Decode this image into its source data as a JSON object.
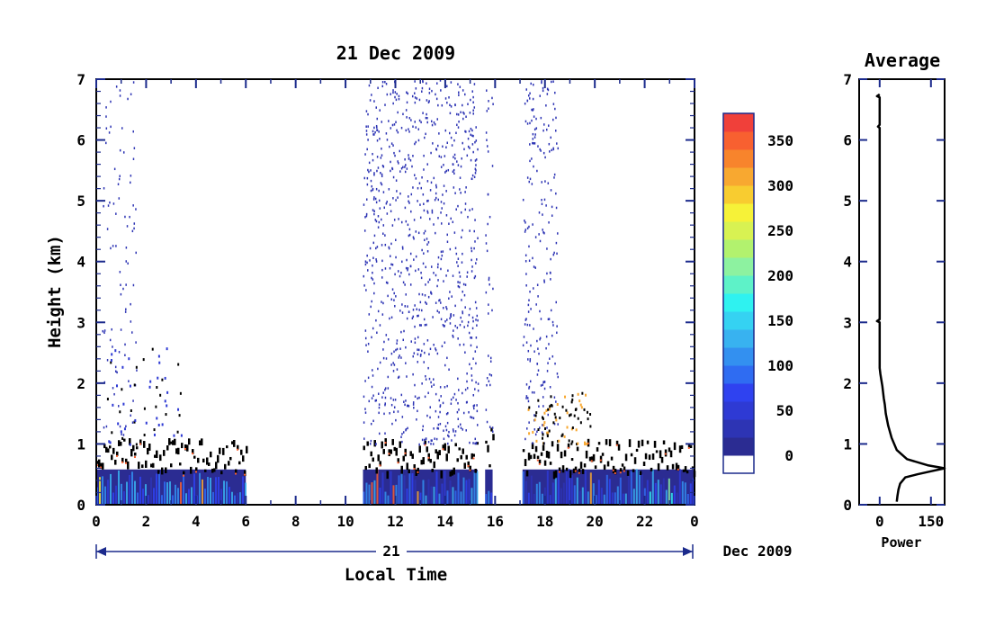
{
  "chart_data": [
    {
      "type": "heatmap",
      "title": "21 Dec 2009",
      "xlabel": "Local Time",
      "ylabel": "Height (km)",
      "x_tick_labels": [
        "0",
        "2",
        "4",
        "6",
        "8",
        "10",
        "12",
        "14",
        "16",
        "18",
        "20",
        "22",
        "0"
      ],
      "y_tick_labels": [
        "0",
        "1",
        "2",
        "3",
        "4",
        "5",
        "6",
        "7"
      ],
      "xlim": [
        0,
        24
      ],
      "ylim": [
        0,
        7
      ],
      "date_bar_label": "21",
      "date_suffix": "Dec 2009",
      "colorbar": {
        "tick_labels": [
          "0",
          "50",
          "100",
          "150",
          "200",
          "250",
          "300",
          "350"
        ],
        "range": [
          0,
          380
        ],
        "colors": [
          "#2b2c92",
          "#2d34b4",
          "#2e3ad4",
          "#2f42f0",
          "#2f6cf2",
          "#3390f0",
          "#38b2f0",
          "#35d2f2",
          "#2ff2f0",
          "#5ef2c8",
          "#8df2a0",
          "#b2f26e",
          "#d8f252",
          "#f6f238",
          "#f8cc30",
          "#f8a830",
          "#f8842c",
          "#f86030",
          "#f0403a"
        ]
      },
      "data_segments": [
        {
          "start": 0.0,
          "end": 6.0,
          "top": 1.0
        },
        {
          "start": 10.7,
          "end": 15.3,
          "top": 1.0
        },
        {
          "start": 15.6,
          "end": 15.9,
          "top": 1.3
        },
        {
          "start": 17.1,
          "end": 24.0,
          "top": 1.0
        }
      ]
    },
    {
      "type": "line",
      "title": "Average",
      "xlabel": "Power",
      "ylabel": "",
      "x_tick_labels": [
        "0",
        "150"
      ],
      "y_tick_labels": [
        "0",
        "1",
        "2",
        "3",
        "4",
        "5",
        "6",
        "7"
      ],
      "xlim": [
        -60,
        190
      ],
      "ylim": [
        0,
        7
      ],
      "series": [
        {
          "x": [
            50,
            52,
            55,
            60,
            75,
            110,
            150,
            190,
            140,
            80,
            50,
            35,
            25,
            18,
            15,
            12,
            10,
            8,
            5,
            2,
            0,
            0,
            0,
            -8,
            0,
            0,
            0,
            -5,
            0,
            0,
            -8,
            0
          ],
          "y": [
            0.05,
            0.15,
            0.25,
            0.35,
            0.45,
            0.5,
            0.55,
            0.6,
            0.65,
            0.75,
            0.9,
            1.1,
            1.3,
            1.5,
            1.65,
            1.75,
            1.85,
            1.95,
            2.05,
            2.15,
            2.25,
            2.4,
            3.0,
            3.02,
            3.05,
            5.0,
            6.2,
            6.22,
            6.25,
            6.7,
            6.72,
            6.75
          ]
        }
      ]
    }
  ]
}
